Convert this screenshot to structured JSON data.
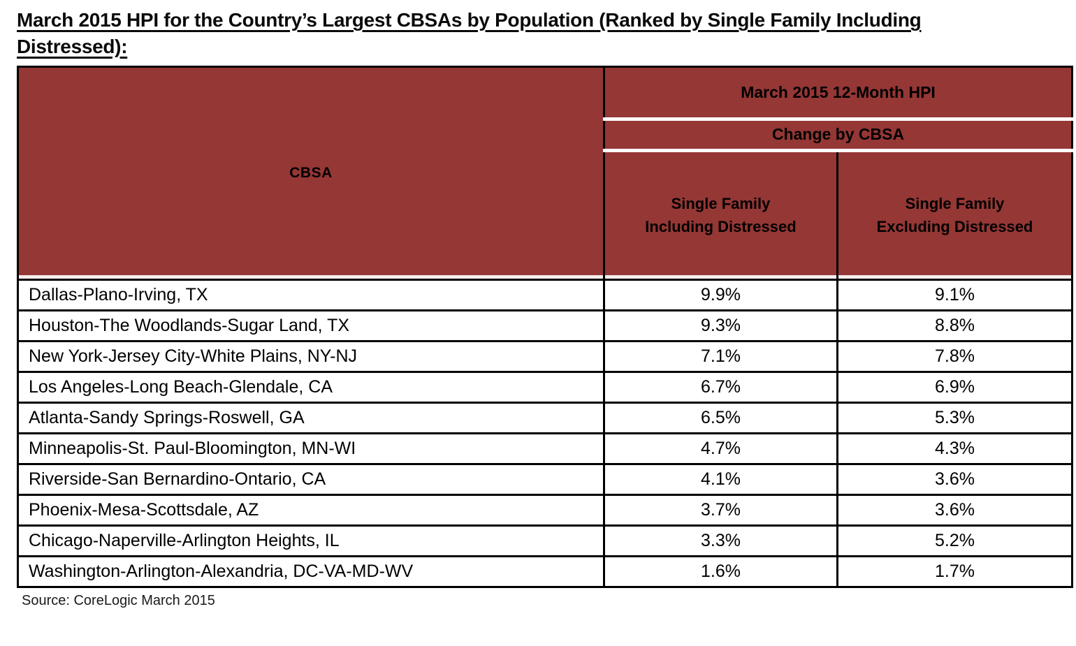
{
  "page": {
    "title_line1": "March 2015 HPI for the Country’s Largest CBSAs by Population (Ranked by Single Family Including",
    "title_line2": "Distressed):",
    "source": "Source: CoreLogic March 2015"
  },
  "colors": {
    "header_background": "#953735",
    "border": "#000000",
    "header_divider": "#ffffff",
    "row_background": "#ffffff",
    "text": "#000000"
  },
  "chart_data": {
    "type": "table",
    "title": "March 2015 HPI for the Country’s Largest CBSAs by Population (Ranked by Single Family Including Distressed)",
    "header": {
      "cbsa": "CBSA",
      "group": "March 2015 12-Month HPI",
      "subgroup": "Change by CBSA",
      "col_including_line1": "Single Family",
      "col_including_line2": "Including Distressed",
      "col_excluding_line1": "Single Family",
      "col_excluding_line2": "Excluding Distressed"
    },
    "rows": [
      {
        "cbsa": "Dallas-Plano-Irving, TX",
        "including": "9.9%",
        "excluding": "9.1%"
      },
      {
        "cbsa": "Houston-The Woodlands-Sugar Land, TX",
        "including": "9.3%",
        "excluding": "8.8%"
      },
      {
        "cbsa": "New York-Jersey City-White Plains, NY-NJ",
        "including": "7.1%",
        "excluding": "7.8%"
      },
      {
        "cbsa": "Los Angeles-Long Beach-Glendale, CA",
        "including": "6.7%",
        "excluding": "6.9%"
      },
      {
        "cbsa": "Atlanta-Sandy Springs-Roswell, GA",
        "including": "6.5%",
        "excluding": "5.3%"
      },
      {
        "cbsa": "Minneapolis-St. Paul-Bloomington, MN-WI",
        "including": "4.7%",
        "excluding": "4.3%"
      },
      {
        "cbsa": "Riverside-San Bernardino-Ontario, CA",
        "including": "4.1%",
        "excluding": "3.6%"
      },
      {
        "cbsa": "Phoenix-Mesa-Scottsdale, AZ",
        "including": "3.7%",
        "excluding": "3.6%"
      },
      {
        "cbsa": "Chicago-Naperville-Arlington Heights, IL",
        "including": "3.3%",
        "excluding": "5.2%"
      },
      {
        "cbsa": "Washington-Arlington-Alexandria, DC-VA-MD-WV",
        "including": "1.6%",
        "excluding": "1.7%"
      }
    ]
  }
}
